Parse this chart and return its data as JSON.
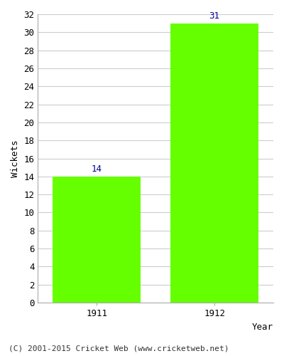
{
  "categories": [
    "1911",
    "1912"
  ],
  "values": [
    14,
    31
  ],
  "bar_color": "#66ff00",
  "bar_edgecolor": "#66ff00",
  "xlabel": "Year",
  "ylabel": "Wickets",
  "ylim": [
    0,
    32
  ],
  "yticks": [
    0,
    2,
    4,
    6,
    8,
    10,
    12,
    14,
    16,
    18,
    20,
    22,
    24,
    26,
    28,
    30,
    32
  ],
  "label_color": "#000099",
  "label_fontsize": 9,
  "axis_label_fontsize": 9,
  "tick_fontsize": 9,
  "grid_color": "#cccccc",
  "background_color": "#ffffff",
  "footer_text": "(C) 2001-2015 Cricket Web (www.cricketweb.net)",
  "footer_fontsize": 8
}
